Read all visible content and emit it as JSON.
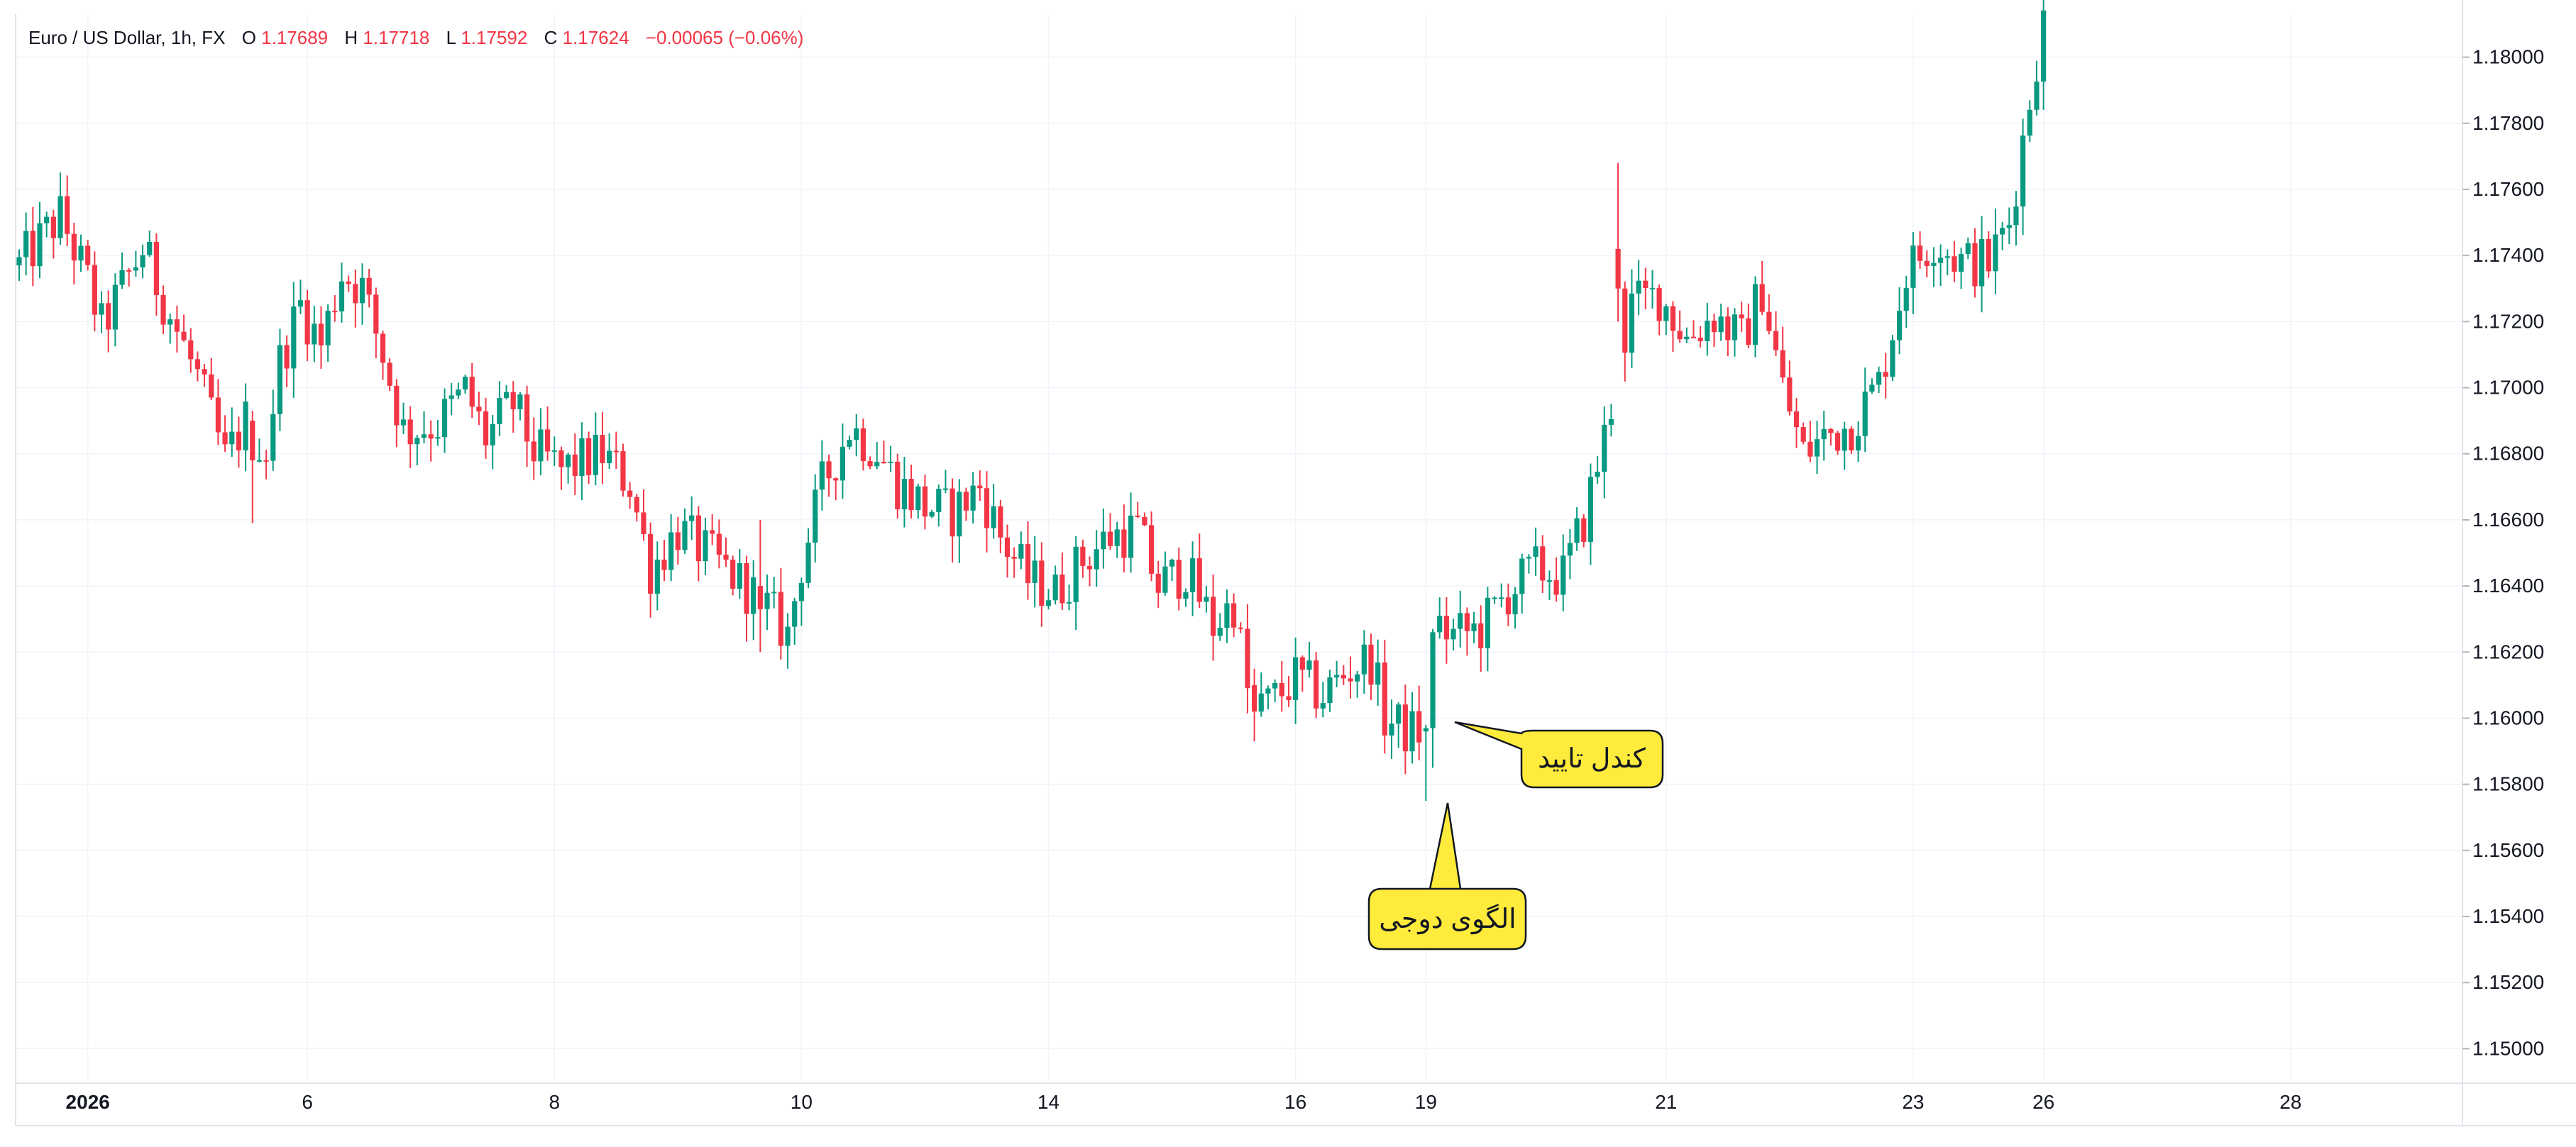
{
  "header": {
    "symbol": "Euro / US Dollar, 1h, FX",
    "open_label": "O",
    "open": "1.17689",
    "high_label": "H",
    "high": "1.17718",
    "low_label": "L",
    "low": "1.17592",
    "close_label": "C",
    "close": "1.17624",
    "change": "−0.00065 (−0.06%)"
  },
  "annotations": {
    "doji": "الگوی دوجی",
    "confirm": "کندل تایید"
  },
  "colors": {
    "up": "#089981",
    "down": "#f23645",
    "ohlc_value": "#f23645",
    "grid": "#f0f3fa",
    "callout_fill": "#ffeb3b",
    "callout_stroke": "#131722",
    "axis_text": "#131722"
  },
  "chart_data": {
    "type": "candlestick",
    "y_axis": {
      "min": 1.149,
      "max": 1.1813,
      "ticks": [
        "1.15000",
        "1.15200",
        "1.15400",
        "1.15600",
        "1.15800",
        "1.16000",
        "1.16200",
        "1.16400",
        "1.16600",
        "1.16800",
        "1.17000",
        "1.17200",
        "1.17400",
        "1.17600",
        "1.17800",
        "1.18000"
      ],
      "position": "right"
    },
    "x_axis": {
      "ticks": [
        {
          "label": "2026",
          "bar": 10
        },
        {
          "label": "6",
          "bar": 42
        },
        {
          "label": "8",
          "bar": 78
        },
        {
          "label": "10",
          "bar": 114
        },
        {
          "label": "14",
          "bar": 150
        },
        {
          "label": "16",
          "bar": 186
        },
        {
          "label": "19",
          "bar": 205
        },
        {
          "label": "21",
          "bar": 240
        },
        {
          "label": "23",
          "bar": 276
        },
        {
          "label": "26",
          "bar": 295
        },
        {
          "label": "28",
          "bar": 331
        }
      ],
      "total_bars": 348
    },
    "price_path": [
      [
        0,
        1.1737
      ],
      [
        6,
        1.1752
      ],
      [
        10,
        1.1732
      ],
      [
        12,
        1.1718
      ],
      [
        18,
        1.1742
      ],
      [
        22,
        1.1722
      ],
      [
        26,
        1.1703
      ],
      [
        30,
        1.1678
      ],
      [
        33,
        1.169
      ],
      [
        36,
        1.1682
      ],
      [
        38,
        1.1708
      ],
      [
        41,
        1.1725
      ],
      [
        44,
        1.1713
      ],
      [
        47,
        1.1735
      ],
      [
        50,
        1.173
      ],
      [
        53,
        1.171
      ],
      [
        56,
        1.1687
      ],
      [
        61,
        1.1689
      ],
      [
        65,
        1.1699
      ],
      [
        68,
        1.1685
      ],
      [
        72,
        1.1695
      ],
      [
        75,
        1.1681
      ],
      [
        79,
        1.1675
      ],
      [
        85,
        1.168
      ],
      [
        89,
        1.1671
      ],
      [
        92,
        1.1645
      ],
      [
        96,
        1.1657
      ],
      [
        100,
        1.165
      ],
      [
        104,
        1.1643
      ],
      [
        108,
        1.1636
      ],
      [
        112,
        1.1625
      ],
      [
        114,
        1.1647
      ],
      [
        117,
        1.167
      ],
      [
        121,
        1.1688
      ],
      [
        125,
        1.1681
      ],
      [
        128,
        1.1671
      ],
      [
        132,
        1.1664
      ],
      [
        136,
        1.1662
      ],
      [
        140,
        1.167
      ],
      [
        143,
        1.1655
      ],
      [
        147,
        1.1642
      ],
      [
        151,
        1.1638
      ],
      [
        155,
        1.1648
      ],
      [
        159,
        1.1655
      ],
      [
        163,
        1.1657
      ],
      [
        166,
        1.164
      ],
      [
        170,
        1.1645
      ],
      [
        174,
        1.1628
      ],
      [
        177,
        1.1635
      ],
      [
        179,
        1.1608
      ],
      [
        182,
        1.1604
      ],
      [
        186,
        1.1612
      ],
      [
        190,
        1.1607
      ],
      [
        194,
        1.1615
      ],
      [
        197,
        1.1618
      ],
      [
        199,
        1.16
      ],
      [
        202,
        1.1596
      ],
      [
        204,
        1.1596
      ],
      [
        205,
        1.1597
      ],
      [
        206,
        1.1629
      ],
      [
        209,
        1.1625
      ],
      [
        213,
        1.1627
      ],
      [
        217,
        1.1638
      ],
      [
        221,
        1.1645
      ],
      [
        225,
        1.1643
      ],
      [
        228,
        1.166
      ],
      [
        231,
        1.1685
      ],
      [
        235,
        1.1725
      ],
      [
        239,
        1.1728
      ],
      [
        243,
        1.1715
      ],
      [
        247,
        1.1722
      ],
      [
        251,
        1.1714
      ],
      [
        254,
        1.173
      ],
      [
        257,
        1.17
      ],
      [
        260,
        1.168
      ],
      [
        263,
        1.1685
      ],
      [
        267,
        1.1689
      ],
      [
        271,
        1.1701
      ],
      [
        275,
        1.1735
      ],
      [
        279,
        1.1745
      ],
      [
        283,
        1.1738
      ],
      [
        287,
        1.1738
      ],
      [
        290,
        1.175
      ],
      [
        294,
        1.18
      ],
      [
        295,
        1.181
      ]
    ],
    "special_candles": [
      {
        "bar": 205,
        "open": 1.1596,
        "high": 1.1598,
        "low": 1.1575,
        "close": 1.1597
      },
      {
        "bar": 206,
        "open": 1.1597,
        "high": 1.1627,
        "low": 1.1585,
        "close": 1.1626
      },
      {
        "bar": 233,
        "open": 1.1742,
        "high": 1.1768,
        "low": 1.172,
        "close": 1.173
      },
      {
        "bar": 34,
        "open": 1.169,
        "high": 1.1693,
        "low": 1.1659,
        "close": 1.1678
      },
      {
        "bar": 108,
        "open": 1.164,
        "high": 1.166,
        "low": 1.162,
        "close": 1.1633
      },
      {
        "bar": 180,
        "open": 1.161,
        "high": 1.1615,
        "low": 1.1593,
        "close": 1.1602
      }
    ]
  }
}
